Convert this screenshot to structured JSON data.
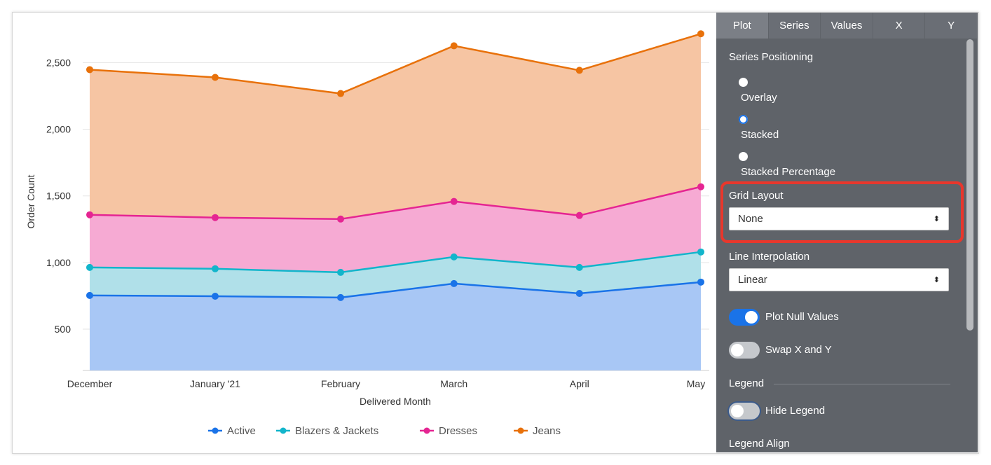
{
  "chart_data": {
    "type": "area",
    "stacked": true,
    "xlabel": "Delivered Month",
    "ylabel": "Order Count",
    "x": [
      "2020-12-01",
      "2021-01-01",
      "2021-02-01",
      "2021-03-01",
      "2021-04-01",
      "2021-05-01"
    ],
    "x_tick_labels": [
      "December",
      "January '21",
      "February",
      "March",
      "April",
      "May"
    ],
    "y_ticks": [
      500,
      1000,
      1500,
      2000,
      2500
    ],
    "y_tick_labels": [
      "500",
      "1,000",
      "1,500",
      "2,000",
      "2,500"
    ],
    "ylim": [
      190,
      2770
    ],
    "grid": true,
    "legend_position": "bottom",
    "series": [
      {
        "name": "Active",
        "values": [
          753,
          747,
          737,
          842,
          768,
          853
        ],
        "color": "#1a73e8",
        "fill": "#a8c7f5"
      },
      {
        "name": "Blazers & Jackets",
        "values": [
          210,
          206,
          189,
          200,
          195,
          226
        ],
        "color": "#12b5cb",
        "fill": "#b0e0e9"
      },
      {
        "name": "Dresses",
        "values": [
          395,
          384,
          400,
          416,
          390,
          489
        ],
        "color": "#e52592",
        "fill": "#f6aad3"
      },
      {
        "name": "Jeans",
        "values": [
          1089,
          1052,
          942,
          1168,
          1089,
          1148
        ],
        "color": "#e8710a",
        "fill": "#f6c5a3"
      }
    ]
  },
  "panel": {
    "tabs": [
      "Plot",
      "Series",
      "Values",
      "X",
      "Y"
    ],
    "active_tab": "Plot",
    "series_positioning_label": "Series Positioning",
    "positioning_options": [
      "Overlay",
      "Stacked",
      "Stacked Percentage"
    ],
    "positioning_selected": "Stacked",
    "grid_layout_label": "Grid Layout",
    "grid_layout_value": "None",
    "line_interpolation_label": "Line Interpolation",
    "line_interpolation_value": "Linear",
    "plot_null_values_label": "Plot Null Values",
    "plot_null_values": true,
    "swap_xy_label": "Swap X and Y",
    "swap_xy": false,
    "legend_section_label": "Legend",
    "hide_legend_label": "Hide Legend",
    "hide_legend": false,
    "legend_align_label": "Legend Align",
    "highlight_color": "#e8372c"
  }
}
